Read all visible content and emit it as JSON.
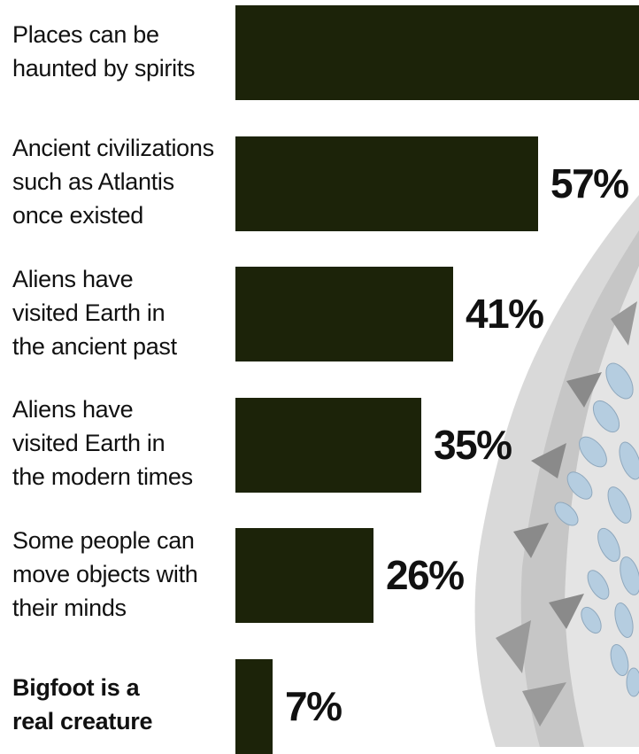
{
  "chart_data": {
    "type": "bar",
    "orientation": "horizontal",
    "categories": [
      "Places can be haunted by spirits",
      "Ancient civilizations such as Atlantis once existed",
      "Aliens have visited Earth in the ancient past",
      "Aliens have visited Earth in the modern times",
      "Some people can move objects with their minds",
      "Bigfoot is a real creature"
    ],
    "label_lines": [
      [
        "Places can be",
        "haunted by spirits"
      ],
      [
        "Ancient civilizations",
        "such as Atlantis",
        "once existed"
      ],
      [
        "Aliens have",
        "visited Earth in",
        "the ancient past"
      ],
      [
        "Aliens have",
        "visited Earth in",
        "the modern times"
      ],
      [
        "Some people can",
        "move objects with",
        "their minds"
      ],
      [
        "Bigfoot is a",
        "real creature"
      ]
    ],
    "bold_rows": [
      false,
      false,
      false,
      false,
      false,
      true
    ],
    "values": [
      76,
      57,
      41,
      35,
      26,
      7
    ],
    "value_labels": [
      "",
      "57%",
      "41%",
      "35%",
      "26%",
      "7%"
    ],
    "xlim": [
      0,
      76
    ],
    "bar_color": "#1c2309",
    "title": "",
    "xlabel": "",
    "ylabel": ""
  }
}
